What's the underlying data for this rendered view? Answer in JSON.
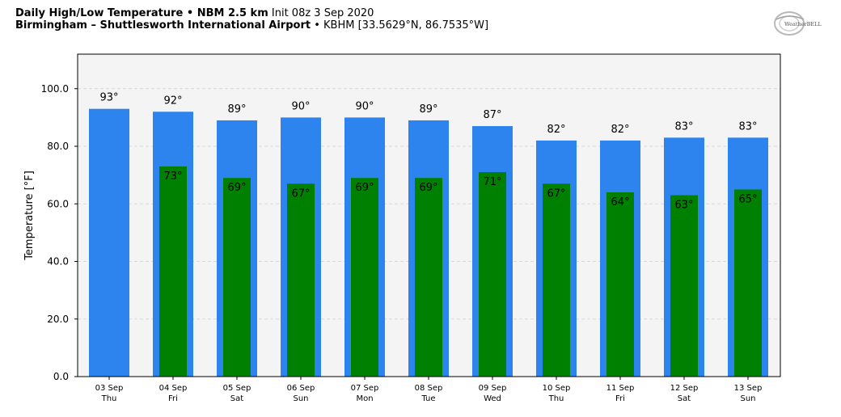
{
  "header": {
    "title_bold": "Daily High/Low Temperature • NBM 2.5 km",
    "title_normal": "Init 08z 3 Sep 2020",
    "subtitle_bold": "Birmingham – Shuttlesworth International Airport",
    "subtitle_normal": "• KBHM [33.5629°N, 86.7535°W]"
  },
  "logo": {
    "text": "WeatherBELL"
  },
  "colors": {
    "high": "#2e84ef",
    "low": "#008000",
    "plot_bg": "#f4f4f4",
    "grid": "#d8d8d8"
  },
  "chart_data": {
    "type": "bar",
    "ylabel": "Temperature [°F]",
    "ylim": [
      0,
      112
    ],
    "yticks": [
      0,
      20,
      40,
      60,
      80,
      100
    ],
    "ytick_labels": [
      "0.0",
      "20.0",
      "40.0",
      "60.0",
      "80.0",
      "100.0"
    ],
    "grid": true,
    "categories": [
      {
        "date": "03 Sep",
        "day": "Thu"
      },
      {
        "date": "04 Sep",
        "day": "Fri"
      },
      {
        "date": "05 Sep",
        "day": "Sat"
      },
      {
        "date": "06 Sep",
        "day": "Sun"
      },
      {
        "date": "07 Sep",
        "day": "Mon"
      },
      {
        "date": "08 Sep",
        "day": "Tue"
      },
      {
        "date": "09 Sep",
        "day": "Wed"
      },
      {
        "date": "10 Sep",
        "day": "Thu"
      },
      {
        "date": "11 Sep",
        "day": "Fri"
      },
      {
        "date": "12 Sep",
        "day": "Sat"
      },
      {
        "date": "13 Sep",
        "day": "Sun"
      }
    ],
    "series": [
      {
        "key": "high",
        "values": [
          93,
          92,
          89,
          90,
          90,
          89,
          87,
          82,
          82,
          83,
          83
        ],
        "labels": [
          "93°",
          "92°",
          "89°",
          "90°",
          "90°",
          "89°",
          "87°",
          "82°",
          "82°",
          "83°",
          "83°"
        ]
      },
      {
        "key": "low",
        "values": [
          null,
          73,
          69,
          67,
          69,
          69,
          71,
          67,
          64,
          63,
          65
        ],
        "labels": [
          "",
          "73°",
          "69°",
          "67°",
          "69°",
          "69°",
          "71°",
          "67°",
          "64°",
          "63°",
          "65°"
        ]
      }
    ]
  }
}
